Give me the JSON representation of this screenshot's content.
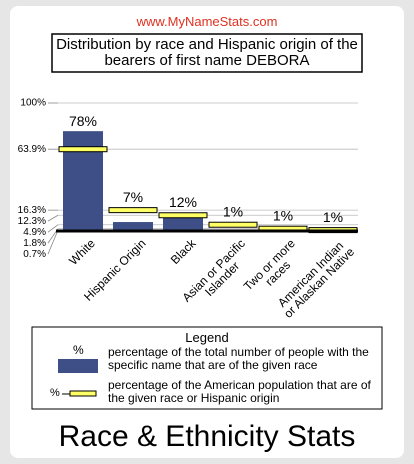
{
  "site": "www.MyNameStats.com",
  "footer": "Race & Ethnicity Stats",
  "chart_data": {
    "type": "bar",
    "title": "Distribution by race and Hispanic origin of the bearers of first name DEBORA",
    "categories": [
      "White",
      "Hispanic Origin",
      "Black",
      "Asian or Pacific\nIslander",
      "Two or more\nraces",
      "American Indian\nor Alaskan Native"
    ],
    "series": [
      {
        "name": "percentage of the total number of people with the specific name that are of the given race",
        "symbol": "%",
        "color": "#3d4f86",
        "values": [
          78,
          7,
          12,
          1,
          1,
          1
        ],
        "value_labels": [
          "78%",
          "7%",
          "12%",
          "1%",
          "1%",
          "1%"
        ]
      },
      {
        "name": "percentage of the American population that are of the given race or Hispanic origin",
        "symbol": "%",
        "color": "#ffff66",
        "values": [
          63.9,
          16.3,
          12.3,
          4.9,
          1.8,
          0.7
        ]
      }
    ],
    "legend_title": "Legend",
    "ylim": [
      0,
      100
    ],
    "yticks": [
      {
        "value": 100,
        "label": "100%"
      },
      {
        "value": 63.9,
        "label": "63.9%"
      },
      {
        "value": 16.3,
        "label": "16.3%"
      },
      {
        "value": 12.3,
        "label": "12.3%"
      },
      {
        "value": 4.9,
        "label": "4.9%"
      },
      {
        "value": 1.8,
        "label": "1.8%"
      },
      {
        "value": 0.7,
        "label": "0.7%"
      }
    ],
    "grid": true
  }
}
